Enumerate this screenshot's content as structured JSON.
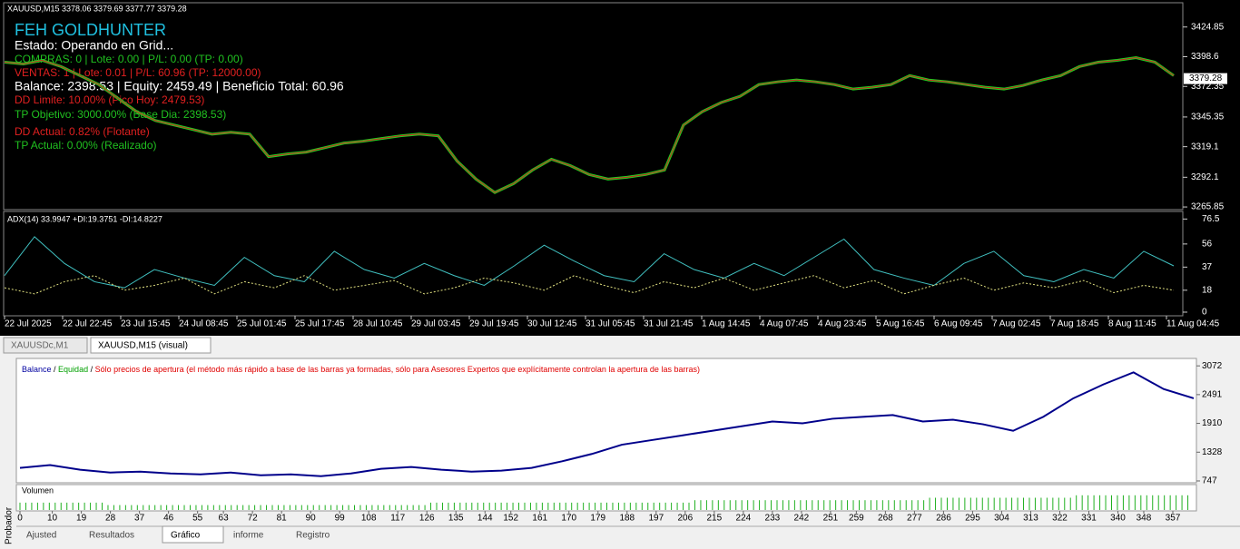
{
  "main_chart": {
    "header": "XAUUSD,M15  3378.06 3379.69 3377.77 3379.28",
    "overlay": {
      "title": "FEH GOLDHUNTER",
      "status": "Estado: Operando en Grid...",
      "buys": "COMPRAS: 0 | Lote: 0.00 | P/L: 0.00 (TP: 0.00)",
      "sells": "VENTAS: 1 | Lote: 0.01 | P/L: 60.96 (TP: 12000.00)",
      "balance": "Balance: 2398.53 | Equity: 2459.49 | Beneficio Total: 60.96",
      "dd_limit": "DD Limite: 10.00% (Pico Hoy: 2479.53)",
      "tp_target": "TP Objetivo: 3000.00% (Base Dia: 2398.53)",
      "dd_current": "DD Actual: 0.82% (Flotante)",
      "tp_current": "TP Actual: 0.00% (Realizado)"
    },
    "ylim": [
      3263.5,
      3446.3
    ],
    "yticks": [
      3424.85,
      3398.6,
      3372.35,
      3345.35,
      3319.1,
      3292.1,
      3265.85
    ],
    "current_price": 3379.28,
    "price": [
      3393.8,
      3392.2,
      3395.4,
      3389.9,
      3381.9,
      3374.0,
      3362.0,
      3350.1,
      3342.2,
      3338.2,
      3334.2,
      3330.2,
      3331.8,
      3330.2,
      3310.3,
      3312.7,
      3314.3,
      3318.3,
      3322.3,
      3323.9,
      3326.3,
      3328.7,
      3330.2,
      3328.7,
      3306.4,
      3290.5,
      3278.6,
      3286.5,
      3298.5,
      3308.0,
      3302.4,
      3294.5,
      3290.5,
      3292.1,
      3294.5,
      3298.5,
      3338.2,
      3350.1,
      3358.1,
      3363.6,
      3374.0,
      3376.4,
      3378.0,
      3376.4,
      3374.0,
      3370.0,
      3371.6,
      3374.0,
      3381.9,
      3378.0,
      3376.4,
      3374.0,
      3371.6,
      3370.0,
      3373.2,
      3378.0,
      3381.9,
      3389.9,
      3393.8,
      3395.4,
      3397.8,
      3393.8,
      3381.9
    ],
    "adx": {
      "header": "ADX(14) 33.9947 +DI:19.3751 -DI:14.8227",
      "ylim": [
        -3,
        82
      ],
      "yticks": [
        76.5,
        56,
        37,
        18,
        0
      ],
      "series": [
        {
          "color": "#40c0c0",
          "values": [
            30,
            62,
            40,
            25,
            20,
            35,
            28,
            22,
            45,
            30,
            25,
            50,
            35,
            28,
            40,
            30,
            22,
            38,
            55,
            42,
            30,
            25,
            48,
            35,
            28,
            40,
            30,
            45,
            60,
            35,
            28,
            22,
            40,
            50,
            30,
            25,
            35,
            28,
            50,
            38
          ]
        },
        {
          "color": "#e0e080",
          "values": [
            20,
            15,
            25,
            30,
            18,
            22,
            28,
            15,
            25,
            20,
            30,
            18,
            22,
            26,
            15,
            20,
            28,
            24,
            18,
            30,
            22,
            16,
            25,
            20,
            28,
            18,
            24,
            30,
            20,
            26,
            15,
            22,
            28,
            18,
            24,
            20,
            26,
            16,
            22,
            18
          ]
        }
      ]
    },
    "xticks": [
      "22 Jul 2025",
      "22 Jul 22:45",
      "23 Jul 15:45",
      "24 Jul 08:45",
      "25 Jul 01:45",
      "25 Jul 17:45",
      "28 Jul 10:45",
      "29 Jul 03:45",
      "29 Jul 19:45",
      "30 Jul 12:45",
      "31 Jul 05:45",
      "31 Jul 21:45",
      "1 Aug 14:45",
      "4 Aug 07:45",
      "4 Aug 23:45",
      "5 Aug 16:45",
      "6 Aug 09:45",
      "7 Aug 02:45",
      "7 Aug 18:45",
      "8 Aug 11:45",
      "11 Aug 04:45"
    ]
  },
  "chart_tabs": [
    "XAUUSDc,M1",
    "XAUUSD,M15 (visual)"
  ],
  "tester": {
    "legend": {
      "balance": "Balance",
      "sep": " / ",
      "equity": "Equidad",
      "mode": "Sólo precios de apertura (el método más rápido a base de las barras ya formadas, sólo para Asesores Expertos que explícitamente controlan la apertura de las barras)"
    },
    "ylim": [
      710,
      3222
    ],
    "yticks": [
      3072,
      2491,
      1910,
      1328,
      747
    ],
    "balance": [
      1010.6,
      1066.8,
      973.1,
      916.9,
      935.6,
      898.2,
      879.4,
      916.9,
      860.7,
      879.4,
      841.9,
      898.2,
      991.9,
      1029.3,
      973.1,
      935.6,
      954.4,
      1010.6,
      1141.8,
      1291.7,
      1479.1,
      1572.8,
      1666.5,
      1760.2,
      1853.9,
      1947.6,
      1910.1,
      2003.8,
      2041.3,
      2078.8,
      1947.6,
      1985.1,
      1891.4,
      1760.2,
      2041.3,
      2416.1,
      2697.2,
      2940.8,
      2603.5,
      2416.1
    ],
    "volume_label": "Volumen",
    "volume_ylim": [
      0,
      10
    ],
    "volume": [
      3,
      3,
      3,
      2,
      2,
      2,
      2,
      2,
      2,
      2,
      2,
      2,
      2,
      2,
      3,
      3,
      3,
      3,
      3,
      3,
      3,
      3,
      3,
      4,
      4,
      4,
      4,
      4,
      4,
      4,
      4,
      5,
      5,
      5,
      5,
      5,
      6,
      6,
      6,
      6
    ],
    "xlim": [
      0,
      357
    ],
    "xticks": [
      0,
      10,
      19,
      28,
      37,
      46,
      55,
      63,
      72,
      81,
      90,
      99,
      108,
      117,
      126,
      135,
      144,
      152,
      161,
      170,
      179,
      188,
      197,
      206,
      215,
      224,
      233,
      242,
      251,
      259,
      268,
      277,
      286,
      295,
      304,
      313,
      322,
      331,
      340,
      348,
      357
    ]
  },
  "side_label": "Probador",
  "bottom_tabs": [
    "Ajusted",
    "Resultados",
    "Gráfico",
    "informe",
    "Registro"
  ]
}
